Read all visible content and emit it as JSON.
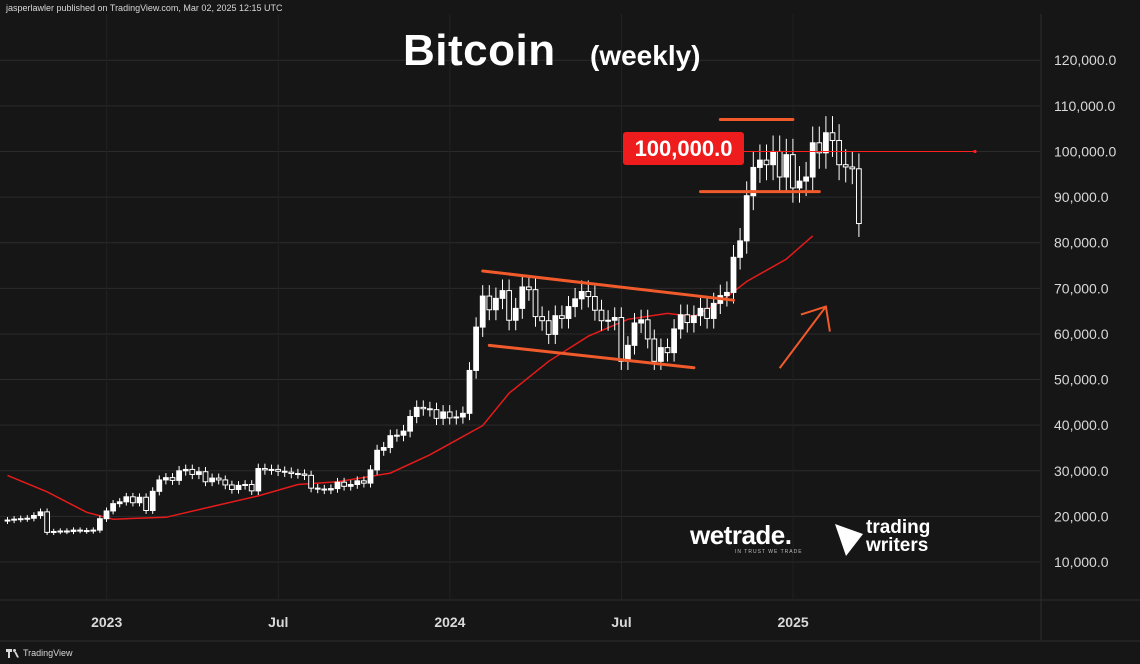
{
  "header": {
    "credit": "jasperlawler published on TradingView.com, Mar 02, 2025 12:15 UTC",
    "title": "Bitcoin",
    "subtitle": "(weekly)"
  },
  "footer": {
    "brand": "TradingView"
  },
  "annotations": {
    "level_label": "100,000.0",
    "level_value": 100000,
    "brand1": "wetrade.",
    "brand1_tagline": "IN TRUST WE TRADE",
    "brand2": "trading writers"
  },
  "colors": {
    "background": "#161616",
    "grid": "#2b2b2b",
    "candle": "#ffffff",
    "moving_average": "#e51b1b",
    "trendlines": "#f15a2b",
    "level_line": "#ff1f1f",
    "label_bg": "#ee1c1c"
  },
  "chart_data": {
    "type": "candlestick",
    "interval": "weekly",
    "y_axis": {
      "side": "right",
      "range": [
        0,
        130000
      ],
      "ticks": [
        10000,
        20000,
        30000,
        40000,
        50000,
        60000,
        70000,
        80000,
        90000,
        100000,
        110000,
        120000
      ],
      "tick_labels": [
        "10,000.0",
        "20,000.0",
        "30,000.0",
        "40,000.0",
        "50,000.0",
        "60,000.0",
        "70,000.0",
        "80,000.0",
        "90,000.0",
        "100,000.0",
        "110,000.0",
        "120,000.0"
      ]
    },
    "x_axis": {
      "start_week": 0,
      "end_week": 115,
      "ticks": [
        {
          "week": 12,
          "label": "2023"
        },
        {
          "week": 38,
          "label": "Jul"
        },
        {
          "week": 64,
          "label": "2024"
        },
        {
          "week": 90,
          "label": "Jul"
        },
        {
          "week": 116,
          "label": "2025"
        }
      ]
    },
    "grid": true,
    "closes": [
      19200,
      19400,
      19500,
      19600,
      20200,
      21000,
      16500,
      16700,
      16800,
      16700,
      17000,
      16900,
      16800,
      17000,
      19500,
      21200,
      22800,
      23200,
      24300,
      23000,
      24200,
      21300,
      25500,
      28000,
      28500,
      27900,
      30000,
      30300,
      29200,
      29800,
      27600,
      28400,
      28000,
      26900,
      25900,
      26800,
      27000,
      25600,
      30500,
      30200,
      30300,
      29900,
      29700,
      29400,
      29300,
      29000,
      26200,
      26000,
      25800,
      26100,
      27500,
      26600,
      27000,
      27800,
      27300,
      30200,
      34500,
      35100,
      37700,
      37800,
      38700,
      41900,
      43900,
      43600,
      43400,
      41500,
      42900,
      41600,
      41800,
      42600,
      52000,
      61500,
      68300,
      65300,
      67800,
      69500,
      63000,
      65600,
      70300,
      69700,
      63800,
      62900,
      59900,
      64000,
      63400,
      66000,
      67700,
      69300,
      68200,
      65200,
      62900,
      63000,
      63600,
      54000,
      57500,
      62400,
      63100,
      58900,
      54000,
      57000,
      55900,
      61100,
      64200,
      62500,
      64000,
      65600,
      63400,
      66700,
      68400,
      69100,
      76800,
      80400,
      90300,
      96500,
      98100,
      97100,
      100000,
      94400,
      99300,
      92000,
      93500,
      94400,
      101900,
      99700,
      104100,
      102400,
      97100,
      96600,
      96200,
      84200
    ],
    "moving_average": {
      "name": "",
      "values": [
        [
          0,
          29000
        ],
        [
          6,
          25400
        ],
        [
          12,
          20900
        ],
        [
          16,
          19400
        ],
        [
          18,
          19500
        ],
        [
          24,
          19800
        ],
        [
          32,
          22500
        ],
        [
          38,
          24500
        ],
        [
          44,
          27000
        ],
        [
          50,
          27600
        ],
        [
          58,
          29500
        ],
        [
          64,
          33500
        ],
        [
          68,
          36700
        ],
        [
          72,
          39900
        ],
        [
          76,
          47000
        ],
        [
          82,
          54000
        ],
        [
          88,
          59500
        ],
        [
          94,
          63200
        ],
        [
          100,
          64500
        ],
        [
          104,
          63800
        ],
        [
          108,
          67000
        ],
        [
          112,
          71500
        ],
        [
          118,
          76400
        ],
        [
          122,
          81500
        ]
      ]
    },
    "horizontal_level": 100000,
    "trendlines": [
      {
        "role": "resistance",
        "from": [
          72,
          73800
        ],
        "to": [
          110,
          67400
        ]
      },
      {
        "role": "support",
        "from": [
          73,
          57500
        ],
        "to": [
          104,
          52600
        ]
      },
      {
        "role": "range-top",
        "from": [
          108,
          107000
        ],
        "to": [
          119,
          107000
        ]
      },
      {
        "role": "range-bottom",
        "from": [
          105,
          91200
        ],
        "to": [
          123,
          91200
        ]
      },
      {
        "role": "arrow",
        "from": [
          117,
          52500
        ],
        "to": [
          124,
          66000
        ]
      }
    ]
  }
}
